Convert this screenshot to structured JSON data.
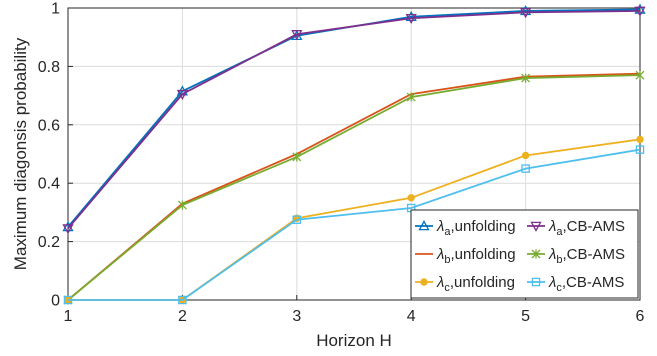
{
  "chart_data": {
    "type": "line",
    "xlabel": "Horizon H",
    "ylabel": "Maximum diagonsis probability",
    "xlim": [
      1,
      6
    ],
    "ylim": [
      0,
      1
    ],
    "xticks": [
      "1",
      "2",
      "3",
      "4",
      "5",
      "6"
    ],
    "yticks": [
      "0",
      "0.2",
      "0.4",
      "0.6",
      "0.8",
      "1"
    ],
    "grid": true,
    "legend_position": "bottom-right",
    "x": [
      1,
      2,
      3,
      4,
      5,
      6
    ],
    "series": [
      {
        "name": "λa,unfolding",
        "sym": "λ",
        "sub": "a",
        "suffix": ",unfolding",
        "values": [
          0.25,
          0.715,
          0.905,
          0.97,
          0.99,
          0.995
        ],
        "color": "#0072BD",
        "marker": "triangle-up"
      },
      {
        "name": "λa,CB-AMS",
        "sym": "λ",
        "sub": "a",
        "suffix": ",CB-AMS",
        "values": [
          0.245,
          0.705,
          0.91,
          0.965,
          0.985,
          0.99
        ],
        "color": "#7E2F8E",
        "marker": "triangle-down"
      },
      {
        "name": "λb,unfolding",
        "sym": "λ",
        "sub": "b",
        "suffix": ",unfolding",
        "values": [
          0.0,
          0.33,
          0.5,
          0.705,
          0.765,
          0.775
        ],
        "color": "#D95319",
        "marker": "none"
      },
      {
        "name": "λb,CB-AMS",
        "sym": "λ",
        "sub": "b",
        "suffix": ",CB-AMS",
        "values": [
          0.0,
          0.325,
          0.49,
          0.695,
          0.76,
          0.77
        ],
        "color": "#77AC30",
        "marker": "x-star"
      },
      {
        "name": "λc,unfolding",
        "sym": "λ",
        "sub": "c",
        "suffix": ",unfolding",
        "values": [
          0.0,
          0.0,
          0.28,
          0.35,
          0.495,
          0.55
        ],
        "color": "#EDB120",
        "marker": "circle"
      },
      {
        "name": "λc,CB-AMS",
        "sym": "λ",
        "sub": "c",
        "suffix": ",CB-AMS",
        "values": [
          0.0,
          0.0,
          0.275,
          0.315,
          0.45,
          0.515
        ],
        "color": "#4DBEEE",
        "marker": "square"
      }
    ]
  }
}
